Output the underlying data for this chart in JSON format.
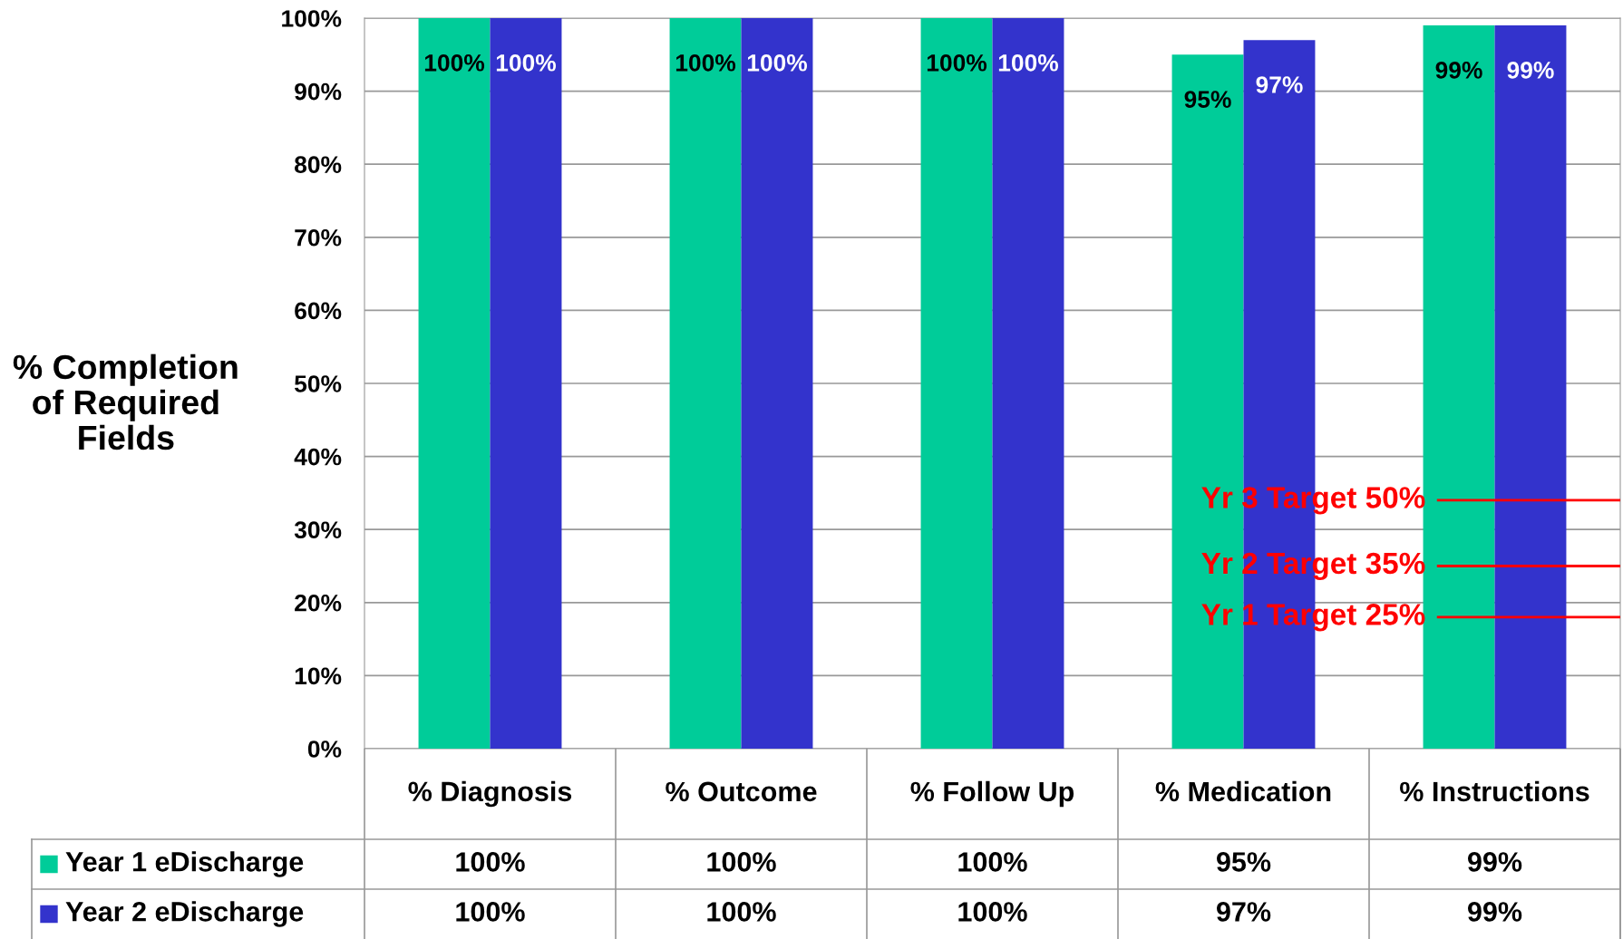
{
  "chart_data": {
    "type": "bar",
    "ylabel": "% Completion\nof Required\nFields",
    "categories": [
      "% Diagnosis",
      "% Outcome",
      "% Follow Up",
      "% Medication",
      "% Instructions"
    ],
    "series": [
      {
        "name": "Year 1 eDischarge",
        "color": "#00cc99",
        "values": [
          100,
          100,
          100,
          95,
          99
        ],
        "value_labels": [
          "100%",
          "100%",
          "100%",
          "95%",
          "99%"
        ]
      },
      {
        "name": "Year 2 eDischarge",
        "color": "#3333cc",
        "values": [
          100,
          100,
          100,
          97,
          99
        ],
        "value_labels": [
          "100%",
          "100%",
          "100%",
          "97%",
          "99%"
        ]
      }
    ],
    "ylim": [
      0,
      100
    ],
    "yticks": [
      {
        "value": 0,
        "label": "0%"
      },
      {
        "value": 10,
        "label": "10%"
      },
      {
        "value": 20,
        "label": "20%"
      },
      {
        "value": 30,
        "label": "30%"
      },
      {
        "value": 40,
        "label": "40%"
      },
      {
        "value": 50,
        "label": "50%"
      },
      {
        "value": 60,
        "label": "60%"
      },
      {
        "value": 70,
        "label": "70%"
      },
      {
        "value": 80,
        "label": "80%"
      },
      {
        "value": 90,
        "label": "90%"
      },
      {
        "value": 100,
        "label": "100%"
      }
    ],
    "ref_lines": [
      {
        "axis": "y",
        "value": 34,
        "label": "Yr 3 Target 50%",
        "color": "#ff0000"
      },
      {
        "axis": "y",
        "value": 25,
        "label": "Yr 2 Target 35%",
        "color": "#ff0000"
      },
      {
        "axis": "y",
        "value": 18,
        "label": "Yr 1 Target 25%",
        "color": "#ff0000"
      }
    ],
    "grid": "y",
    "legend": "bottom left"
  }
}
